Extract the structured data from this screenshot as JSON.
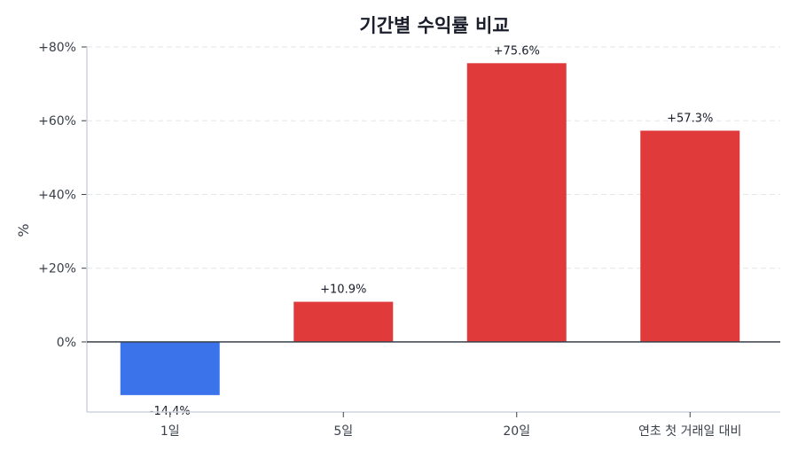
{
  "chart_data": {
    "type": "bar",
    "title": "기간별 수익률 비교",
    "xlabel": "",
    "ylabel": "%",
    "categories": [
      "1일",
      "5일",
      "20일",
      "연초 첫 거래일 대비"
    ],
    "values": [
      -14.4,
      10.9,
      75.6,
      57.3
    ],
    "data_labels": [
      "-14.4%",
      "+10.9%",
      "+75.6%",
      "+57.3%"
    ],
    "ylim": [
      -19,
      80
    ],
    "yticks": [
      0,
      20,
      40,
      60,
      80
    ],
    "ytick_labels": [
      "0%",
      "+20%",
      "+40%",
      "+60%",
      "+80%"
    ],
    "grid": "horizontal dashed",
    "colors": {
      "positive": "#e03a3a",
      "negative": "#3b73ea",
      "zero_line": "#3a404a"
    }
  }
}
